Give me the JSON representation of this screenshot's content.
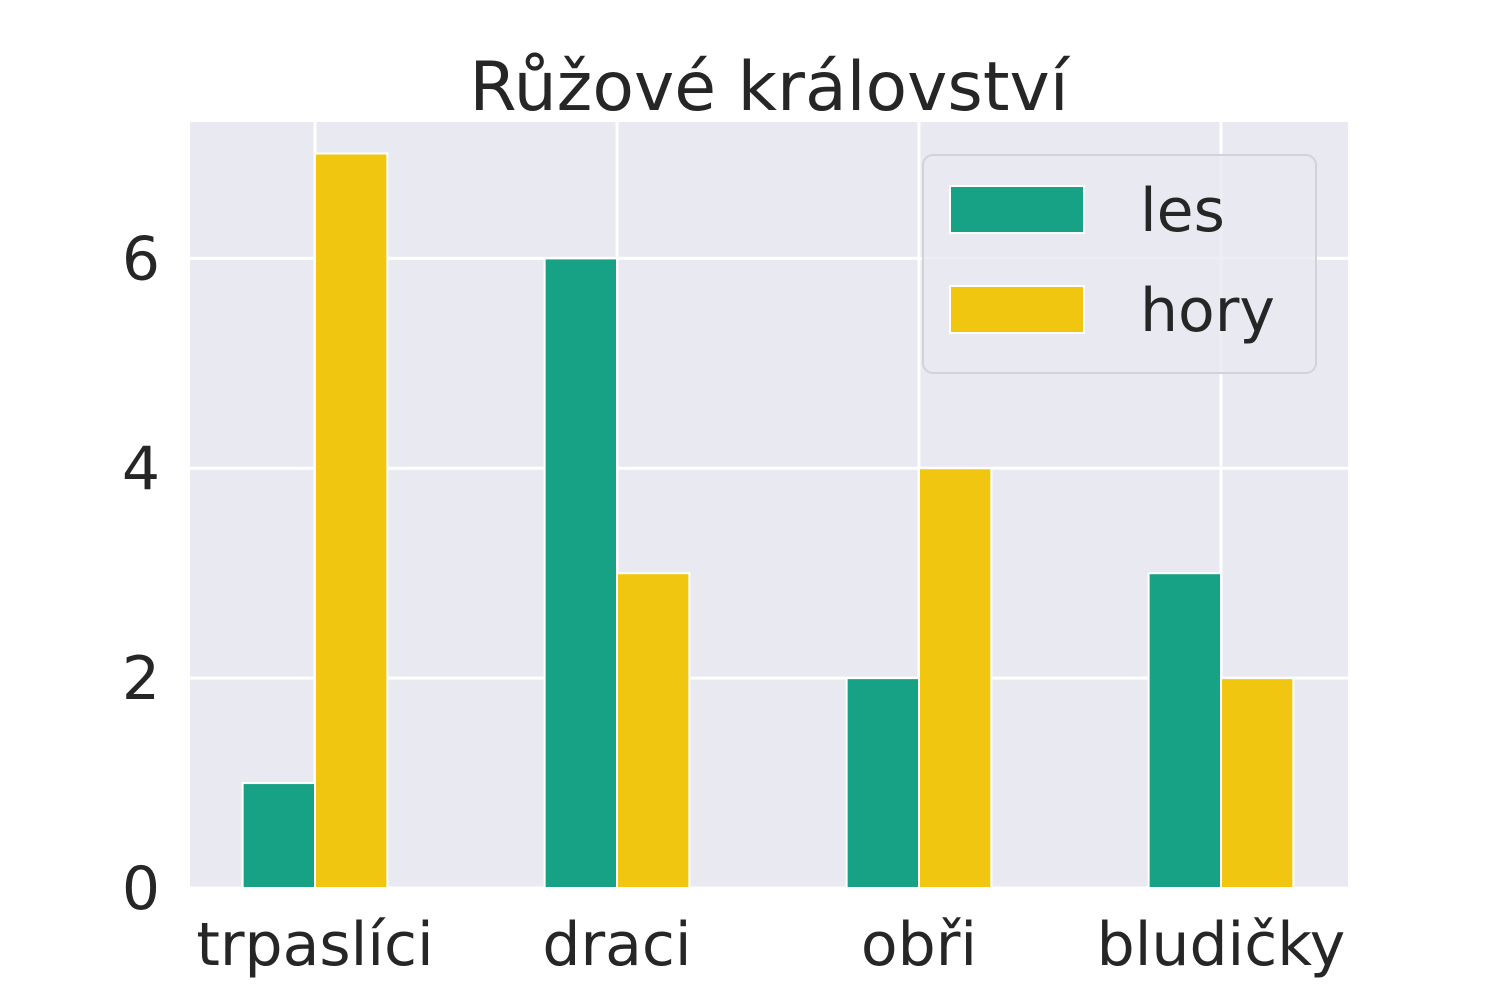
{
  "chart_data": {
    "type": "bar",
    "title": "Růžové království",
    "xlabel": "",
    "ylabel": "",
    "categories": [
      "trpaslíci",
      "draci",
      "obři",
      "bludičky"
    ],
    "series": [
      {
        "name": "les",
        "values": [
          1,
          6,
          2,
          3
        ],
        "color": "#17a185"
      },
      {
        "name": "hory",
        "values": [
          7,
          3,
          4,
          2
        ],
        "color": "#f0c610"
      }
    ],
    "ylim": [
      0,
      7.3
    ],
    "yticks": [
      0,
      2,
      4,
      6
    ],
    "grid": true,
    "legend_position": "top-right",
    "background_color": "#e9e9f1",
    "grid_color": "#ffffff"
  }
}
